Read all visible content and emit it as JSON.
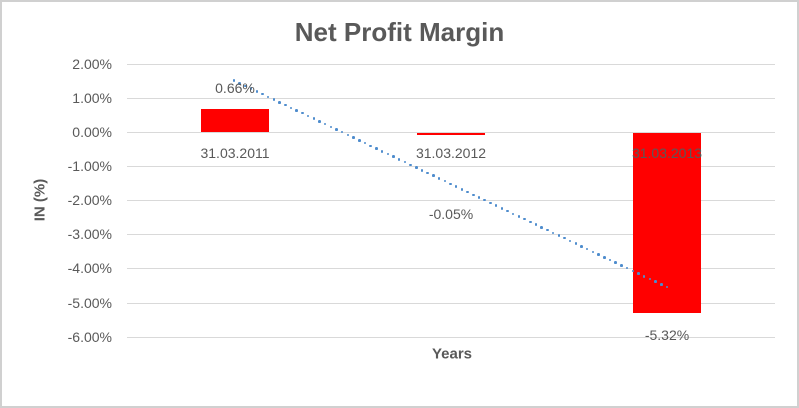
{
  "chart": {
    "title": "Net Profit Margin",
    "y_axis_title": "IN (%)",
    "x_axis_title": "Years",
    "colors": {
      "bar": "#ff0000",
      "trendline": "#4e8ccd",
      "gridline": "#d9d9d9",
      "text": "#595959",
      "border": "#d0d0d0"
    }
  },
  "chart_data": {
    "type": "bar",
    "title": "Net Profit Margin",
    "categories": [
      "31.03.2011",
      "31.03.2012",
      "31.03.2013"
    ],
    "values": [
      0.66,
      -0.05,
      -5.32
    ],
    "data_labels": [
      "0.66%",
      "-0.05%",
      "-5.32%"
    ],
    "xlabel": "Years",
    "ylabel": "IN (%)",
    "ylim": [
      -6,
      2
    ],
    "y_tick_step": 1,
    "y_ticks": [
      "2.00%",
      "1.00%",
      "0.00%",
      "-1.00%",
      "-2.00%",
      "-3.00%",
      "-4.00%",
      "-5.00%",
      "-6.00%"
    ],
    "grid": true,
    "legend": "none",
    "trendline": {
      "type": "linear",
      "style": "dotted",
      "endpoints_values": [
        1.5,
        -4.55
      ],
      "span_categories": [
        1,
        3
      ]
    }
  }
}
